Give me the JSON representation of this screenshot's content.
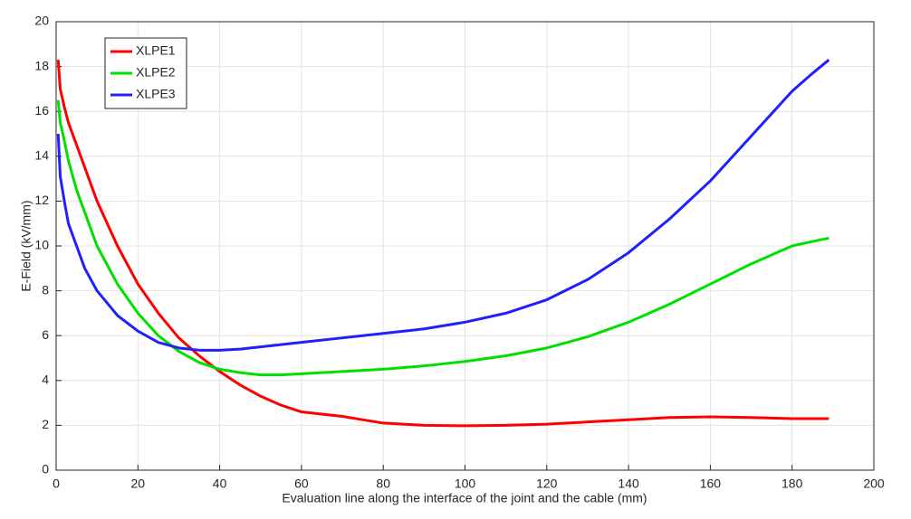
{
  "chart_data": {
    "type": "line",
    "xlabel": "Evaluation line along the interface of the joint and the cable (mm)",
    "ylabel": "E-Field (kV/mm)",
    "x": [
      0.5,
      1,
      2,
      3,
      5,
      7,
      10,
      15,
      20,
      25,
      30,
      35,
      40,
      45,
      50,
      55,
      60,
      70,
      80,
      90,
      100,
      110,
      120,
      130,
      140,
      150,
      160,
      170,
      180,
      185,
      189
    ],
    "series": [
      {
        "name": "XLPE1",
        "color": "#ff0000",
        "values": [
          18.3,
          17,
          16.2,
          15.5,
          14.5,
          13.5,
          12,
          10,
          8.3,
          7,
          5.9,
          5.1,
          4.4,
          3.8,
          3.3,
          2.9,
          2.6,
          2.4,
          2.1,
          2.0,
          1.98,
          2.0,
          2.05,
          2.15,
          2.25,
          2.35,
          2.38,
          2.35,
          2.3,
          2.3,
          2.3
        ]
      },
      {
        "name": "XLPE2",
        "color": "#00e000",
        "values": [
          16.5,
          15.5,
          14.7,
          13.8,
          12.5,
          11.5,
          10,
          8.3,
          7,
          6,
          5.3,
          4.8,
          4.5,
          4.35,
          4.25,
          4.25,
          4.3,
          4.4,
          4.5,
          4.65,
          4.85,
          5.1,
          5.45,
          5.95,
          6.6,
          7.4,
          8.3,
          9.2,
          10,
          10.2,
          10.35
        ]
      },
      {
        "name": "XLPE3",
        "color": "#2020ff",
        "values": [
          15,
          13.1,
          12,
          11,
          10,
          9,
          8,
          6.9,
          6.2,
          5.7,
          5.45,
          5.35,
          5.35,
          5.4,
          5.5,
          5.6,
          5.7,
          5.9,
          6.1,
          6.3,
          6.6,
          7,
          7.6,
          8.5,
          9.7,
          11.2,
          12.9,
          14.9,
          16.9,
          17.7,
          18.3
        ]
      }
    ],
    "xlim": [
      0,
      200
    ],
    "xticks": [
      0,
      20,
      40,
      60,
      80,
      100,
      120,
      140,
      160,
      180,
      200
    ],
    "ylim": [
      0,
      20
    ],
    "yticks": [
      0,
      2,
      4,
      6,
      8,
      10,
      12,
      14,
      16,
      18,
      20
    ],
    "grid": true,
    "legend": "upper left"
  }
}
